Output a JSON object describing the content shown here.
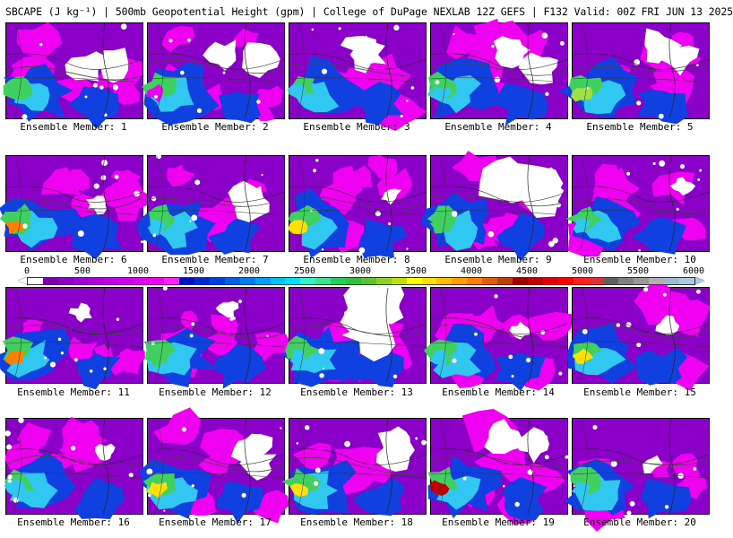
{
  "title": "SBCAPE (J kg⁻¹) | 500mb Geopotential Height (gpm) | College of DuPage NEXLAB 12Z GEFS | F132 Valid: 00Z FRI JUN 13 2025",
  "panels": [
    {
      "label": "Ensemble Member: 1"
    },
    {
      "label": "Ensemble Member: 2"
    },
    {
      "label": "Ensemble Member: 3"
    },
    {
      "label": "Ensemble Member: 4"
    },
    {
      "label": "Ensemble Member: 5"
    },
    {
      "label": "Ensemble Member: 6"
    },
    {
      "label": "Ensemble Member: 7"
    },
    {
      "label": "Ensemble Member: 8"
    },
    {
      "label": "Ensemble Member: 9"
    },
    {
      "label": "Ensemble Member: 10"
    },
    {
      "label": "Ensemble Member: 11"
    },
    {
      "label": "Ensemble Member: 12"
    },
    {
      "label": "Ensemble Member: 13"
    },
    {
      "label": "Ensemble Member: 14"
    },
    {
      "label": "Ensemble Member: 15"
    },
    {
      "label": "Ensemble Member: 16"
    },
    {
      "label": "Ensemble Member: 17"
    },
    {
      "label": "Ensemble Member: 18"
    },
    {
      "label": "Ensemble Member: 19"
    },
    {
      "label": "Ensemble Member: 20"
    }
  ],
  "colorbar": {
    "ticks": [
      "0",
      "500",
      "1000",
      "1500",
      "2000",
      "2500",
      "3000",
      "3500",
      "4000",
      "4500",
      "5000",
      "5500",
      "6000"
    ],
    "colors": [
      "#ffffff",
      "#7a00b0",
      "#8c00c8",
      "#a000d8",
      "#b000e0",
      "#c000e8",
      "#d000f0",
      "#e000f0",
      "#f000f0",
      "#ff20ff",
      "#0010c0",
      "#0028d0",
      "#0040e0",
      "#0060e8",
      "#0080f0",
      "#00a0f8",
      "#00c0f8",
      "#00e0f8",
      "#30f0d0",
      "#40e090",
      "#20d060",
      "#30c040",
      "#60c030",
      "#90d020",
      "#c0e000",
      "#ffff00",
      "#ffe000",
      "#ffc000",
      "#ffa000",
      "#ff8000",
      "#e06000",
      "#c04000",
      "#a00000",
      "#c00000",
      "#e00000",
      "#ff0000",
      "#ff2020",
      "#e03030",
      "#606060",
      "#808080",
      "#989898",
      "#b0b0b0",
      "#a0b8d0",
      "#b0c8e0"
    ]
  },
  "palette": {
    "white": "#ffffff",
    "purple": "#8a00c8",
    "magenta": "#f000f0",
    "blue": "#1040e0",
    "cyan": "#30c8f0",
    "green": "#40d060",
    "lime": "#a0e040",
    "yellow": "#ffe000",
    "orange": "#ff8000",
    "red": "#c00000"
  }
}
